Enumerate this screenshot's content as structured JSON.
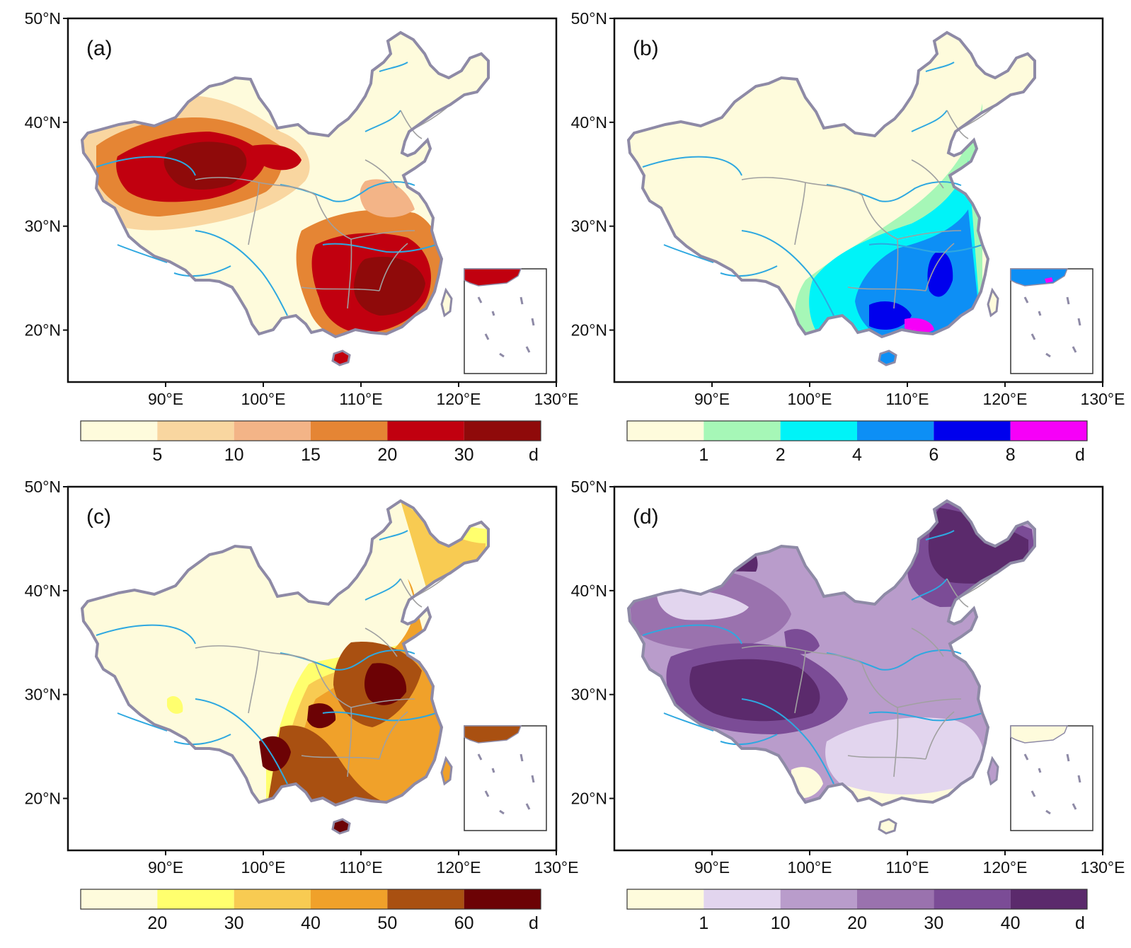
{
  "figure": {
    "lat_ticks": [
      "50°N",
      "40°N",
      "30°N",
      "20°N"
    ],
    "lon_ticks": [
      "90°E",
      "100°E",
      "110°E",
      "120°E",
      "130°E"
    ],
    "lon_range": [
      80,
      130
    ],
    "lat_range": [
      15,
      50
    ],
    "boundary_color": "#8e8aa6",
    "river_color": "#2ea8e0",
    "province_color": "#a0a0a0"
  },
  "panels": [
    {
      "label": "(a)",
      "unit": "d",
      "bins": [
        "5",
        "10",
        "15",
        "20",
        "30"
      ],
      "colors": [
        "#fefbdc",
        "#f9d6a0",
        "#f3b487",
        "#e58534",
        "#c1000f",
        "#8f0a0a"
      ]
    },
    {
      "label": "(b)",
      "unit": "d",
      "bins": [
        "1",
        "2",
        "4",
        "6",
        "8"
      ],
      "colors": [
        "#fefbdc",
        "#a6f7b7",
        "#00f3f8",
        "#0d8ff5",
        "#0000ed",
        "#f600f8"
      ]
    },
    {
      "label": "(c)",
      "unit": "d",
      "bins": [
        "20",
        "30",
        "40",
        "50",
        "60"
      ],
      "colors": [
        "#fefbdc",
        "#ffff6e",
        "#f8cb52",
        "#f0a12a",
        "#a95011",
        "#6c0205"
      ]
    },
    {
      "label": "(d)",
      "unit": "d",
      "bins": [
        "1",
        "10",
        "20",
        "30",
        "40"
      ],
      "colors": [
        "#fefbdc",
        "#e2d5ee",
        "#b99ccb",
        "#9a72ae",
        "#7b4c96",
        "#5b2a6c"
      ]
    }
  ]
}
